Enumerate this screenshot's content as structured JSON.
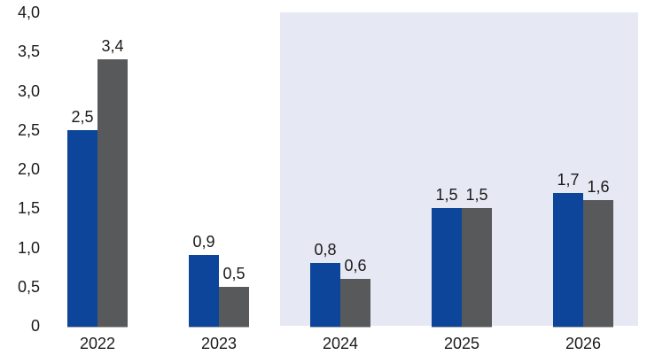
{
  "chart_data": {
    "type": "bar",
    "title": "",
    "xlabel": "",
    "ylabel": "",
    "categories": [
      "2022",
      "2023",
      "2024",
      "2025",
      "2026"
    ],
    "series": [
      {
        "name": "series-blue",
        "color": "#0c4599",
        "values": [
          2.5,
          0.9,
          0.8,
          1.5,
          1.7
        ],
        "value_labels": [
          "2,5",
          "0,9",
          "0,8",
          "1,5",
          "1,7"
        ]
      },
      {
        "name": "series-gray",
        "color": "#58595b",
        "values": [
          3.4,
          0.5,
          0.6,
          1.5,
          1.6
        ],
        "value_labels": [
          "3,4",
          "0,5",
          "0,6",
          "1,5",
          "1,6"
        ]
      }
    ],
    "ylim": [
      0,
      4
    ],
    "yticks": [
      {
        "value": 0,
        "label": "0"
      },
      {
        "value": 0.5,
        "label": "0,5"
      },
      {
        "value": 1,
        "label": "1,0"
      },
      {
        "value": 1.5,
        "label": "1,5"
      },
      {
        "value": 2,
        "label": "2,0"
      },
      {
        "value": 2.5,
        "label": "2,5"
      },
      {
        "value": 3,
        "label": "3,0"
      },
      {
        "value": 3.5,
        "label": "3,5"
      },
      {
        "value": 4,
        "label": "4,0"
      }
    ],
    "grid": false,
    "legend": "none",
    "highlight_region": {
      "from_category": "2024",
      "to_category": "2026",
      "color": "#e6e8f4"
    },
    "baseline_color": "#b2b2b2",
    "text_color": "#1a1a1a"
  }
}
